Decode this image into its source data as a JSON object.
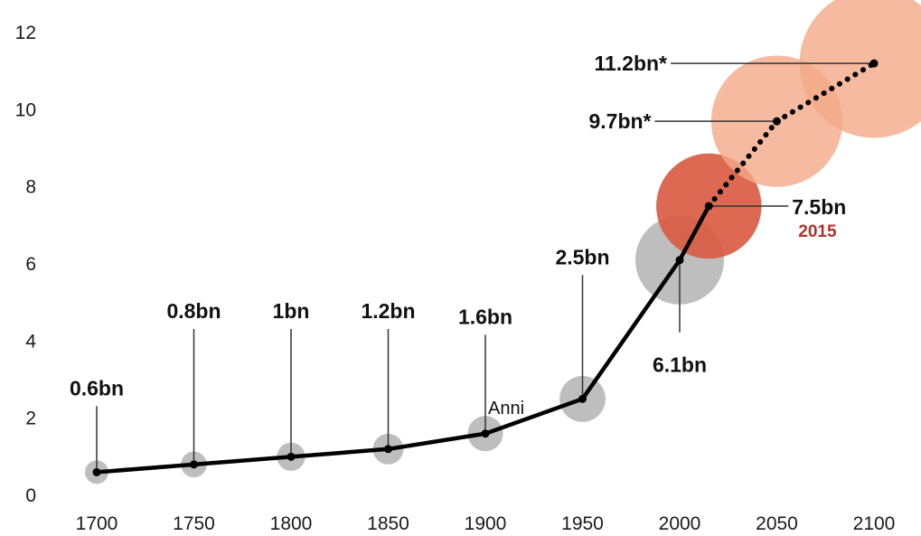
{
  "chart_data": {
    "type": "line",
    "title": "",
    "xlabel": "",
    "ylabel": "",
    "xlim": [
      1700,
      2100
    ],
    "ylim": [
      0,
      12
    ],
    "x_ticks": [
      "1700",
      "1750",
      "1800",
      "1850",
      "1900",
      "1950",
      "2000",
      "2050",
      "2100"
    ],
    "y_ticks": [
      "0",
      "2",
      "4",
      "6",
      "8",
      "10",
      "12"
    ],
    "annotation": "Anni",
    "grid": false,
    "legend": "none",
    "colors": {
      "historical_bubble": "#b3b3b3",
      "current_bubble": "#d9593f",
      "projection_bubble": "#f2a987",
      "line": "#000000",
      "highlight_text": "#b5302a"
    },
    "points": [
      {
        "x": 1700,
        "y": 0.6,
        "label": "0.6bn",
        "kind": "historical"
      },
      {
        "x": 1750,
        "y": 0.8,
        "label": "0.8bn",
        "kind": "historical"
      },
      {
        "x": 1800,
        "y": 1.0,
        "label": "1bn",
        "kind": "historical"
      },
      {
        "x": 1850,
        "y": 1.2,
        "label": "1.2bn",
        "kind": "historical"
      },
      {
        "x": 1900,
        "y": 1.6,
        "label": "1.6bn",
        "kind": "historical"
      },
      {
        "x": 1950,
        "y": 2.5,
        "label": "2.5bn",
        "kind": "historical"
      },
      {
        "x": 2000,
        "y": 6.1,
        "label": "6.1bn",
        "kind": "historical"
      },
      {
        "x": 2015,
        "y": 7.5,
        "label": "7.5bn",
        "sublabel": "2015",
        "kind": "current"
      },
      {
        "x": 2050,
        "y": 9.7,
        "label": "9.7bn*",
        "kind": "projection"
      },
      {
        "x": 2100,
        "y": 11.2,
        "label": "11.2bn*",
        "kind": "projection"
      }
    ]
  }
}
